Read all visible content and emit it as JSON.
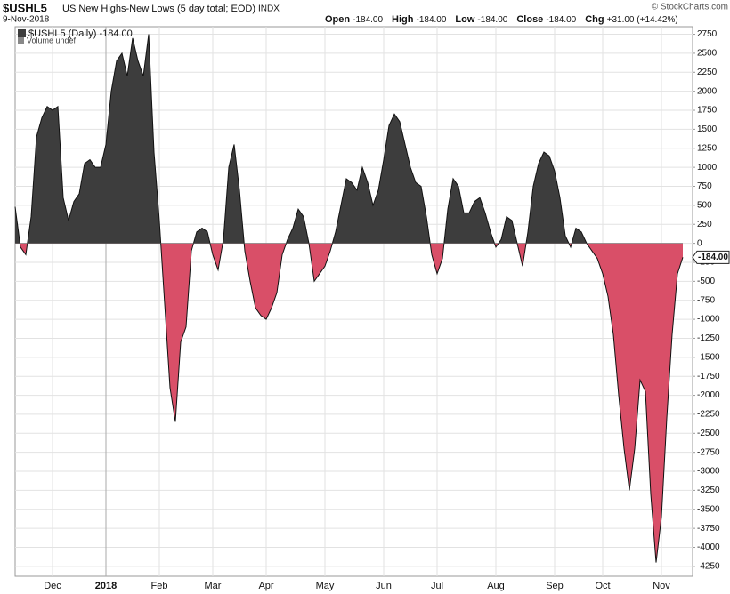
{
  "header": {
    "symbol": "$USHL5",
    "name": "US New Highs-New Lows (5 day total; EOD)",
    "exchange": "INDX",
    "date": "9-Nov-2018",
    "copyright": "© StockCharts.com",
    "quote": [
      {
        "label": "Open",
        "value": "-184.00"
      },
      {
        "label": "High",
        "value": "-184.00"
      },
      {
        "label": "Low",
        "value": "-184.00"
      },
      {
        "label": "Close",
        "value": "-184.00"
      },
      {
        "label": "Chg",
        "value": "+31.00 (+14.42%)"
      }
    ]
  },
  "chart_data": {
    "type": "area",
    "legend": [
      "$USHL5 (Daily) -184.00",
      "Volume undef"
    ],
    "last_value_label": "-184.00",
    "positive_color": "#3d3d3d",
    "negative_color": "#d94f68",
    "line_color": "#111111",
    "categories": [
      null,
      null,
      null,
      null,
      null,
      null,
      null,
      "Dec",
      null,
      null,
      null,
      null,
      null,
      null,
      null,
      null,
      null,
      "2018",
      null,
      null,
      null,
      null,
      null,
      null,
      null,
      null,
      null,
      "Feb",
      null,
      null,
      null,
      null,
      null,
      null,
      null,
      null,
      null,
      "Mar",
      null,
      null,
      null,
      null,
      null,
      null,
      null,
      null,
      null,
      "Apr",
      null,
      null,
      null,
      null,
      null,
      null,
      null,
      null,
      null,
      null,
      "May",
      null,
      null,
      null,
      null,
      null,
      null,
      null,
      null,
      null,
      null,
      "Jun",
      null,
      null,
      null,
      null,
      null,
      null,
      null,
      null,
      null,
      "Jul",
      null,
      null,
      null,
      null,
      null,
      null,
      null,
      null,
      null,
      null,
      "Aug",
      null,
      null,
      null,
      null,
      null,
      null,
      null,
      null,
      null,
      null,
      "Sep",
      null,
      null,
      null,
      null,
      null,
      null,
      null,
      null,
      "Oct",
      null,
      null,
      null,
      null,
      null,
      null,
      null,
      null,
      null,
      null,
      "Nov",
      null,
      null,
      null,
      null
    ],
    "values": [
      480,
      -50,
      -150,
      350,
      1400,
      1650,
      1800,
      1750,
      1800,
      600,
      300,
      550,
      650,
      1050,
      1100,
      1000,
      1000,
      1300,
      2000,
      2400,
      2500,
      2200,
      2700,
      2400,
      2200,
      2750,
      1200,
      300,
      -800,
      -1900,
      -2350,
      -1300,
      -1100,
      -100,
      150,
      200,
      150,
      -150,
      -350,
      50,
      1000,
      1300,
      700,
      -100,
      -500,
      -850,
      -950,
      -1000,
      -850,
      -650,
      -150,
      50,
      200,
      450,
      350,
      0,
      -500,
      -400,
      -300,
      -100,
      150,
      500,
      850,
      800,
      700,
      1000,
      800,
      500,
      700,
      1100,
      1550,
      1700,
      1600,
      1300,
      1000,
      800,
      750,
      350,
      -150,
      -400,
      -200,
      450,
      850,
      750,
      400,
      400,
      550,
      600,
      400,
      150,
      -50,
      50,
      350,
      300,
      0,
      -300,
      150,
      750,
      1050,
      1200,
      1150,
      950,
      600,
      100,
      -50,
      200,
      150,
      0,
      -100,
      -200,
      -400,
      -700,
      -1200,
      -2000,
      -2700,
      -3250,
      -2700,
      -1800,
      -1950,
      -3300,
      -4200,
      -3600,
      -2300,
      -1200,
      -400,
      -184
    ],
    "ylim": [
      -4380,
      2850
    ],
    "yticks": [
      2750,
      2500,
      2250,
      2000,
      1750,
      1500,
      1250,
      1000,
      750,
      500,
      250,
      0,
      -250,
      -500,
      -750,
      -1000,
      -1250,
      -1500,
      -1750,
      -2000,
      -2250,
      -2500,
      -2750,
      -3000,
      -3250,
      -3500,
      -3750,
      -4000,
      -4250
    ],
    "grid": true
  }
}
